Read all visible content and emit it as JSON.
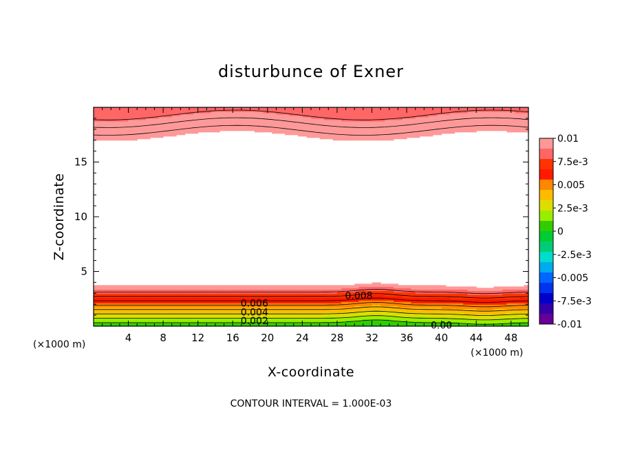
{
  "chart_data": {
    "type": "contour",
    "title": "disturbunce of Exner",
    "xlabel": "X-coordinate",
    "ylabel": "Z-coordinate",
    "x_scale_note": "(×1000 m)",
    "x_scale_note_right": "(×1000 m)",
    "footer": "CONTOUR INTERVAL = 1.000E-03",
    "xlim": [
      0,
      50
    ],
    "ylim": [
      0,
      20
    ],
    "x_ticks": [
      4,
      8,
      12,
      16,
      20,
      24,
      28,
      32,
      36,
      40,
      44,
      48
    ],
    "y_ticks": [
      5,
      10,
      15
    ],
    "contour_interval": 0.001,
    "contour_labels": [
      {
        "text": "0.008",
        "x": 30.5,
        "z": 2.8
      },
      {
        "text": "0.006",
        "x": 18.5,
        "z": 2.1
      },
      {
        "text": "0.004",
        "x": 18.5,
        "z": 1.3
      },
      {
        "text": "0.002",
        "x": 18.5,
        "z": 0.5
      },
      {
        "text": "0.00",
        "x": 40.0,
        "z": 0.1
      }
    ],
    "colorbar": {
      "min": -0.01,
      "max": 0.01,
      "labels": [
        "0.01",
        "7.5e-3",
        "0.005",
        "2.5e-3",
        "0",
        "-2.5e-3",
        "-0.005",
        "-7.5e-3",
        "-0.01"
      ],
      "colors": [
        "#ff9999",
        "#ff6666",
        "#ff3300",
        "#ff1a00",
        "#ff8800",
        "#ffbb00",
        "#dddd00",
        "#99ee00",
        "#33cc00",
        "#00cc33",
        "#00cc77",
        "#00ddcc",
        "#00aaee",
        "#0066ff",
        "#0033ee",
        "#0000cc",
        "#3300aa",
        "#660099"
      ]
    }
  }
}
